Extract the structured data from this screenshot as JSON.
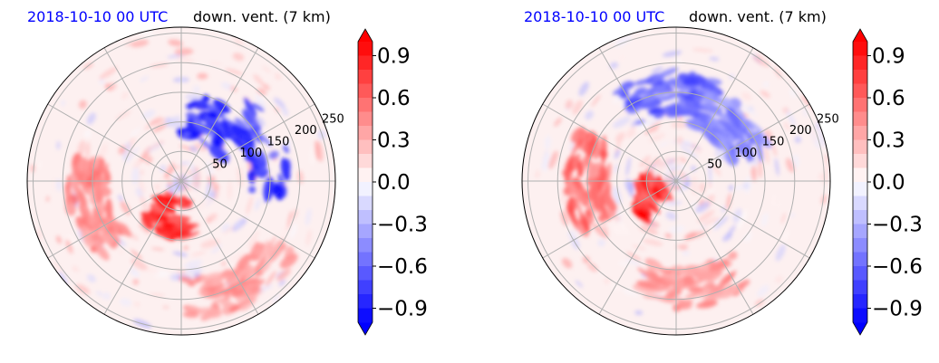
{
  "figure": {
    "colors": {
      "positive": "#ff0000",
      "negative": "#0000ff",
      "grid": "#b0b0b0",
      "neutral": "#ffffff"
    },
    "panels": [
      {
        "time_label": "2018-10-10 00 UTC",
        "variable_label": "down. vent. (7 km)",
        "radial_labels": [
          "50",
          "100",
          "150",
          "200",
          "250"
        ],
        "colorbar_ticks": [
          "0.9",
          "0.6",
          "0.3",
          "0.0",
          "−0.3",
          "−0.6",
          "−0.9"
        ]
      },
      {
        "time_label": "2018-10-10 00 UTC",
        "variable_label": "down. vent. (7 km)",
        "radial_labels": [
          "50",
          "100",
          "150",
          "200",
          "250"
        ],
        "colorbar_ticks": [
          "0.9",
          "0.6",
          "0.3",
          "0.0",
          "−0.3",
          "−0.6",
          "−0.9"
        ]
      }
    ]
  },
  "chart_data": [
    {
      "type": "heatmap",
      "projection": "polar",
      "title": "2018-10-10 00 UTC   down. vent. (7 km)",
      "r_ticks": [
        50,
        100,
        150,
        200,
        250
      ],
      "colorbar": {
        "range": [
          -1.0,
          1.0
        ],
        "ticks": [
          0.9,
          0.6,
          0.3,
          0.0,
          -0.3,
          -0.6,
          -0.9
        ],
        "colormap": "bwr",
        "extend": "both"
      },
      "regions": [
        {
          "description": "strong negative",
          "theta_deg": 60,
          "r": 110,
          "value": -1.0
        },
        {
          "description": "strong negative",
          "theta_deg": 20,
          "r": 150,
          "value": -1.0
        },
        {
          "description": "strong positive",
          "theta_deg": 255,
          "r": 60,
          "value": 1.0
        },
        {
          "description": "positive bands",
          "theta_deg": 195,
          "r": 160,
          "value": 0.6
        },
        {
          "description": "positive bands",
          "theta_deg": 300,
          "r": 200,
          "value": 0.5
        }
      ]
    },
    {
      "type": "heatmap",
      "projection": "polar",
      "title": "2018-10-10 00 UTC   down. vent. (7 km)",
      "r_ticks": [
        50,
        100,
        150,
        200,
        250
      ],
      "colorbar": {
        "range": [
          -1.0,
          1.0
        ],
        "ticks": [
          0.9,
          0.6,
          0.3,
          0.0,
          -0.3,
          -0.6,
          -0.9
        ],
        "colormap": "bwr",
        "extend": "both"
      },
      "regions": [
        {
          "description": "strong positive",
          "theta_deg": 200,
          "r": 50,
          "value": 1.0
        },
        {
          "description": "positive bands",
          "theta_deg": 180,
          "r": 150,
          "value": 0.7
        },
        {
          "description": "negative",
          "theta_deg": 95,
          "r": 150,
          "value": -0.8
        },
        {
          "description": "negative",
          "theta_deg": 45,
          "r": 130,
          "value": -0.6
        },
        {
          "description": "positive bands",
          "theta_deg": 280,
          "r": 180,
          "value": 0.5
        }
      ]
    }
  ]
}
